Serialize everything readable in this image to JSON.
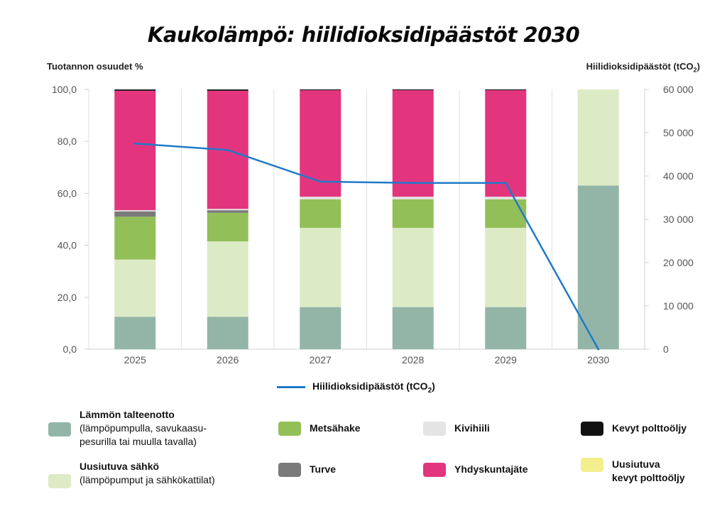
{
  "page": {
    "title": "Kaukolämpö: hiilidioksidipäästöt 2030"
  },
  "chart_data": {
    "type": "bar",
    "stacked": true,
    "title": "Kaukolämpö: hiilidioksidipäästöt 2030",
    "ylabel_left": "Tuotannon osuudet %",
    "ylabel_right": {
      "text": "Hiilidioksidipäästöt (tCO",
      "sub": "2",
      "tail": ")"
    },
    "categories": [
      "2025",
      "2026",
      "2027",
      "2028",
      "2029",
      "2030"
    ],
    "ylim_left": [
      0,
      100
    ],
    "yticks_left": [
      "0,0",
      "20,0",
      "40,0",
      "60,0",
      "80,0",
      "100,0"
    ],
    "ylim_right": [
      0,
      60000
    ],
    "yticks_right": [
      "0",
      "10 000",
      "20 000",
      "30 000",
      "40 000",
      "50 000",
      "60 000"
    ],
    "grid": "vertical",
    "series": [
      {
        "name": "Lämmön talteenotto",
        "color": "#93b5a8",
        "values": [
          12.5,
          12.5,
          16.2,
          16.2,
          16.2,
          63.0
        ]
      },
      {
        "name": "Uusiutuva sähkö",
        "color": "#dcebc6",
        "values": [
          22.0,
          29.0,
          30.5,
          30.5,
          30.5,
          37.0
        ]
      },
      {
        "name": "Metsähake",
        "color": "#93bf58",
        "values": [
          16.5,
          11.0,
          11.0,
          11.0,
          11.0,
          0
        ]
      },
      {
        "name": "Turve",
        "color": "#7a7a7a",
        "values": [
          2.0,
          1.0,
          0,
          0,
          0,
          0
        ]
      },
      {
        "name": "Kivihiili",
        "color": "#e4e4e4",
        "values": [
          0.5,
          0.5,
          1.0,
          1.0,
          1.0,
          0
        ]
      },
      {
        "name": "Yhdyskuntajäte",
        "color": "#e3357e",
        "values": [
          46.0,
          45.5,
          41.0,
          41.0,
          41.0,
          0
        ]
      },
      {
        "name": "Kevyt polttoöljy",
        "color": "#111111",
        "values": [
          0.5,
          0.5,
          0.3,
          0.3,
          0.3,
          0
        ]
      },
      {
        "name": "Uusiutuva kevyt polttoöljy",
        "color": "#f4ef8e",
        "values": [
          0,
          0,
          0,
          0,
          0,
          0
        ]
      }
    ],
    "line": {
      "name": "Hiilidioksidipäästöt (tCO",
      "name_sub": "2",
      "name_tail": ")",
      "color": "#1f7ac9",
      "values": [
        47500,
        46000,
        38700,
        38400,
        38400,
        0
      ]
    }
  },
  "legend": [
    {
      "name": "Lämmön talteenotto",
      "desc": "(lämpöpumpulla, savukaasu-\npesurilla tai muulla tavalla)",
      "color": "#93b5a8"
    },
    {
      "name": "Uusiutuva sähkö",
      "desc": "(lämpöpumput ja sähkökattilat)",
      "color": "#dcebc6"
    },
    {
      "name": "Metsähake",
      "desc": "",
      "color": "#93bf58"
    },
    {
      "name": "Turve",
      "desc": "",
      "color": "#7a7a7a"
    },
    {
      "name": "Kivihiili",
      "desc": "",
      "color": "#e4e4e4"
    },
    {
      "name": "Yhdyskuntajäte",
      "desc": "",
      "color": "#e3357e"
    },
    {
      "name": "Kevyt polttoöljy",
      "desc": "",
      "color": "#111111"
    },
    {
      "name": "Uusiutuva\nkevyt polttoöljy",
      "desc": "",
      "color": "#f4ef8e"
    }
  ]
}
